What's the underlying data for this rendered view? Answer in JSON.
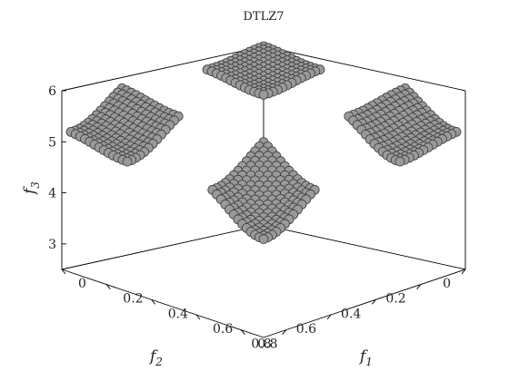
{
  "chart_data": {
    "type": "scatter",
    "subtype": "3d-scatter",
    "title": "DTLZ7",
    "axes": {
      "x": {
        "label": "f",
        "subscript": "1",
        "range": [
          0,
          0.9
        ],
        "ticks": [
          "0",
          "0.2",
          "0.4",
          "0.6",
          "0.8"
        ],
        "tick_values": [
          0,
          0.2,
          0.4,
          0.6,
          0.8
        ]
      },
      "y": {
        "label": "f",
        "subscript": "2",
        "range": [
          0,
          0.9
        ],
        "ticks": [
          "0",
          "0.2",
          "0.4",
          "0.6",
          "0.8"
        ],
        "tick_values": [
          0,
          0.2,
          0.4,
          0.6,
          0.8
        ]
      },
      "z": {
        "label": "f",
        "subscript": "3",
        "range": [
          2.5,
          6
        ],
        "ticks": [
          "3",
          "4",
          "5",
          "6"
        ],
        "tick_values": [
          3,
          4,
          5,
          6
        ]
      }
    },
    "grid": false,
    "legend": "none",
    "series": [
      {
        "description_of_geometry": "Pareto front of DTLZ7 with 3 objectives: four disconnected regions; f1, f2 in [0,0.2514] or [0.6316,0.8594], f3 = 6 - sum(fi/2*(1+sin(3*pi*fi)))",
        "regions": [
          {
            "f1": [
              0,
              0.2514
            ],
            "f2": [
              0,
              0.2514
            ],
            "f3": [
              5.5,
              6.0
            ]
          },
          {
            "f1": [
              0.6316,
              0.8594
            ],
            "f2": [
              0,
              0.2514
            ],
            "f3": [
              4.3,
              5.3
            ]
          },
          {
            "f1": [
              0,
              0.2514
            ],
            "f2": [
              0.6316,
              0.8594
            ],
            "f3": [
              4.3,
              5.3
            ]
          },
          {
            "f1": [
              0.6316,
              0.8594
            ],
            "f2": [
              0.6316,
              0.8594
            ],
            "f3": [
              3.6,
              4.5
            ]
          }
        ]
      }
    ],
    "marker_color": "#9a9a9a",
    "marker_edge_color": "#3c3c3c",
    "box_color": "#000000"
  }
}
